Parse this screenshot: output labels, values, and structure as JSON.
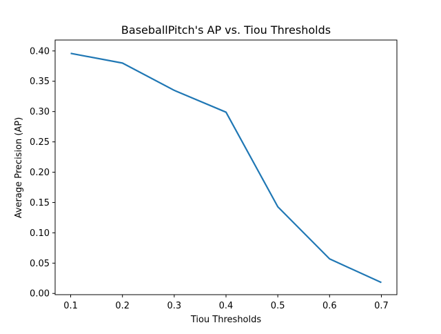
{
  "chart_data": {
    "type": "line",
    "title": "BaseballPitch's AP vs. Tiou Thresholds",
    "xlabel": "Tiou Thresholds",
    "ylabel": "Average Precision (AP)",
    "x": [
      0.1,
      0.2,
      0.3,
      0.4,
      0.5,
      0.6,
      0.7
    ],
    "series": [
      {
        "values": [
          0.396,
          0.38,
          0.335,
          0.299,
          0.143,
          0.057,
          0.018
        ],
        "color": "#1f77b4"
      }
    ],
    "xlim": [
      0.07,
      0.73
    ],
    "ylim": [
      -0.002,
      0.418
    ],
    "xticks": [
      0.1,
      0.2,
      0.3,
      0.4,
      0.5,
      0.6,
      0.7
    ],
    "xtick_labels": [
      "0.1",
      "0.2",
      "0.3",
      "0.4",
      "0.5",
      "0.6",
      "0.7"
    ],
    "yticks": [
      0.0,
      0.05,
      0.1,
      0.15,
      0.2,
      0.25,
      0.3,
      0.35,
      0.4
    ],
    "ytick_labels": [
      "0.00",
      "0.05",
      "0.10",
      "0.15",
      "0.20",
      "0.25",
      "0.30",
      "0.35",
      "0.40"
    ],
    "grid": false,
    "legend": "none"
  }
}
